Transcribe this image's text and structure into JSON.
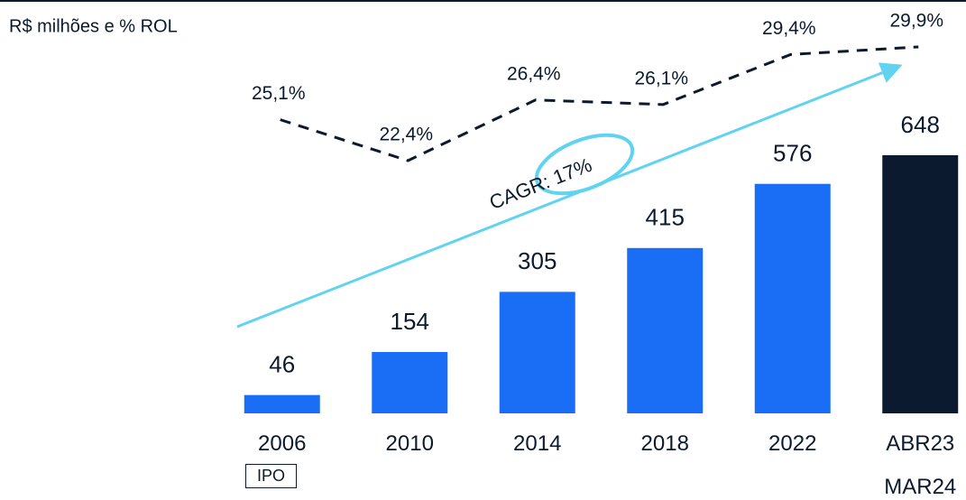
{
  "chart_data": {
    "type": "bar",
    "subtitle": "R$ milhões e % ROL",
    "categories": [
      "2006",
      "2010",
      "2014",
      "2018",
      "2022",
      "ABR23\nMAR24"
    ],
    "series": [
      {
        "type": "bar",
        "values": [
          46,
          154,
          305,
          415,
          576,
          648
        ],
        "colors": [
          "#1a6ef5",
          "#1a6ef5",
          "#1a6ef5",
          "#1a6ef5",
          "#1a6ef5",
          "#0b1a2e"
        ]
      },
      {
        "type": "line",
        "axis": "y2",
        "color": "#0b1a2e",
        "dashed": true,
        "values": [
          25.1,
          22.4,
          26.4,
          26.1,
          29.4,
          29.9
        ],
        "value_labels": [
          "25,1%",
          "22,4%",
          "26,4%",
          "26,1%",
          "29,4%",
          "29,9%"
        ]
      }
    ],
    "ylim": [
      0,
      700
    ],
    "y2lim": [
      20,
      31
    ],
    "annotations": {
      "ipo": "IPO",
      "cagr": "CAGR: 17%",
      "cagr_color": "#5fd3f0"
    }
  }
}
